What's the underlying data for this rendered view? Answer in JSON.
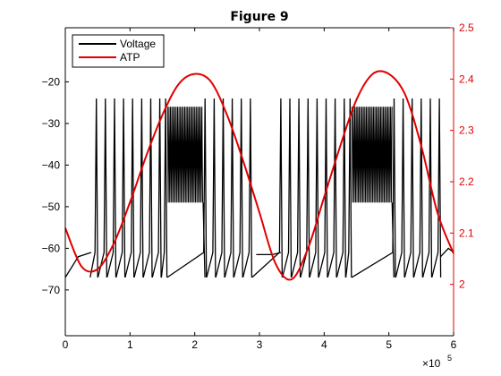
{
  "chart_data": {
    "type": "line",
    "title": "Figure 9",
    "x_ticks": [
      "0",
      "1",
      "2",
      "3",
      "4",
      "5",
      "6"
    ],
    "x_exponent_base": "×10",
    "x_exponent_power": "5",
    "xlim": [
      0,
      600000
    ],
    "y_left_ticks": [
      "-20",
      "-30",
      "-40",
      "-50",
      "-60",
      "-70"
    ],
    "y_left_lim": [
      -81,
      -7
    ],
    "y_right_ticks": [
      "2",
      "2.1",
      "2.2",
      "2.3",
      "2.4",
      "2.5"
    ],
    "y_right_lim": [
      1.9,
      2.5
    ],
    "legend_position": "top-left",
    "grid": false,
    "colors": {
      "voltage": "#000000",
      "atp": "#e00000",
      "right_axis": "#e00000",
      "left_axis": "#000000"
    },
    "series": [
      {
        "name": "Voltage",
        "axis": "left",
        "color": "#000000",
        "baseline_segments": [
          {
            "x": [
              0,
              20000,
              40000
            ],
            "y": [
              -67,
              -62,
              -61
            ]
          },
          {
            "x": [
              295000,
              320000,
              333000
            ],
            "y": [
              -61.5,
              -61.5,
              -61
            ]
          }
        ],
        "spikes": [
          {
            "x": [
              48000,
              62000,
              76000,
              90000,
              104000,
              118000,
              132000,
              146000,
              155000,
              216000,
              230000,
              244000,
              258000,
              272000,
              286000,
              333000,
              347000,
              361000,
              375000,
              389000,
              403000,
              417000,
              431000,
              440000,
              508000,
              522000,
              536000,
              550000,
              564000,
              578000
            ]
          }
        ],
        "spike_peak": -24,
        "spike_trough": -67,
        "bursts": [
          {
            "x_start": 158000,
            "x_end": 213000,
            "top": -26,
            "bottom": -49
          },
          {
            "x_start": 443000,
            "x_end": 505000,
            "top": -26,
            "bottom": -49
          }
        ],
        "tail": {
          "x": [
            580000,
            592000,
            600000
          ],
          "y": [
            -62,
            -60,
            -61
          ]
        }
      },
      {
        "name": "ATP",
        "axis": "right",
        "color": "#e00000",
        "x": [
          0,
          25000,
          50000,
          75000,
          100000,
          125000,
          150000,
          175000,
          200000,
          225000,
          250000,
          275000,
          300000,
          325000,
          350000,
          375000,
          400000,
          425000,
          450000,
          475000,
          500000,
          525000,
          550000,
          575000,
          600000
        ],
        "y": [
          2.11,
          2.035,
          2.03,
          2.08,
          2.16,
          2.25,
          2.33,
          2.39,
          2.41,
          2.395,
          2.33,
          2.24,
          2.14,
          2.04,
          2.01,
          2.07,
          2.17,
          2.27,
          2.36,
          2.41,
          2.41,
          2.37,
          2.27,
          2.14,
          2.06
        ]
      }
    ]
  }
}
